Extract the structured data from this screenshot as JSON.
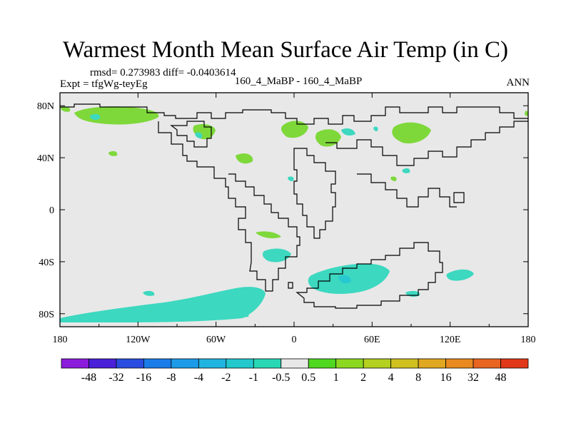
{
  "title": "Warmest Month Mean Surface Air Temp (in C)",
  "stats": "rmsd= 0.273983  diff= -0.0403614",
  "expt": "Expt = tfgWg-teyEg",
  "center_label": "160_4_MaBP - 160_4_MaBP",
  "period": "ANN",
  "map": {
    "lon_range": [
      -180,
      180
    ],
    "lat_range": [
      -90,
      90
    ],
    "background_color": "#e8e8e8",
    "x_ticks": [
      {
        "value": -180,
        "label": "180"
      },
      {
        "value": -120,
        "label": "120W"
      },
      {
        "value": -60,
        "label": "60W"
      },
      {
        "value": 0,
        "label": "0"
      },
      {
        "value": 60,
        "label": "60E"
      },
      {
        "value": 120,
        "label": "120E"
      },
      {
        "value": 180,
        "label": "180"
      }
    ],
    "y_ticks": [
      {
        "value": 80,
        "label": "80N"
      },
      {
        "value": 40,
        "label": "40N"
      },
      {
        "value": 0,
        "label": "0"
      },
      {
        "value": -40,
        "label": "40S"
      },
      {
        "value": -80,
        "label": "80S"
      }
    ]
  },
  "colorbar": {
    "colors": [
      "#8c1cdc",
      "#4a20d8",
      "#2a4ce0",
      "#1a7ce8",
      "#1c9ce8",
      "#20b4e0",
      "#22c8cc",
      "#28d8b4",
      "#e8e8e8",
      "#50d820",
      "#8cd820",
      "#b4d020",
      "#d0c020",
      "#e0a820",
      "#e88a20",
      "#e86420",
      "#e03818"
    ],
    "labels": [
      "-48",
      "-32",
      "-16",
      "-8",
      "-4",
      "-2",
      "-1",
      "-0.5",
      "0.5",
      "1",
      "2",
      "4",
      "8",
      "16",
      "32",
      "48"
    ]
  },
  "field_colors": {
    "green": "#7ed83a",
    "cyan": "#3cd8c0",
    "deep_cyan": "#28c8d0",
    "outline": "#000000"
  }
}
